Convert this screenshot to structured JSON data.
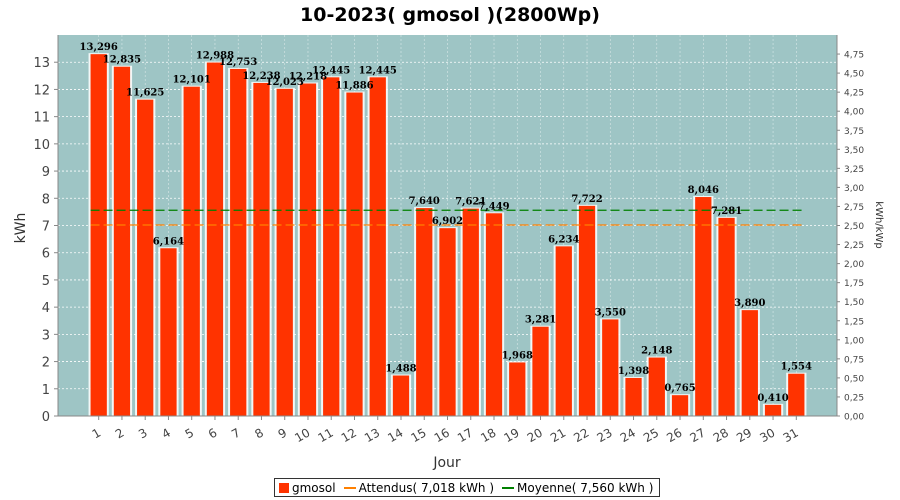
{
  "chart_data": {
    "type": "bar",
    "title": "10-2023( gmosol )(2800Wp)",
    "xlabel": "Jour",
    "ylabel": "kWh",
    "y2label": "kWh/kWp",
    "categories": [
      "1",
      "2",
      "3",
      "4",
      "5",
      "6",
      "7",
      "8",
      "9",
      "10",
      "11",
      "12",
      "13",
      "14",
      "15",
      "16",
      "17",
      "18",
      "19",
      "20",
      "21",
      "22",
      "23",
      "24",
      "25",
      "26",
      "27",
      "28",
      "29",
      "30",
      "31"
    ],
    "series": [
      {
        "name": "gmosol",
        "values": [
          13.296,
          12.835,
          11.625,
          6.164,
          12.101,
          12.988,
          12.753,
          12.238,
          12.023,
          12.218,
          12.445,
          11.886,
          12.445,
          1.488,
          7.64,
          6.902,
          7.621,
          7.449,
          1.968,
          3.281,
          6.234,
          7.722,
          3.55,
          1.398,
          2.148,
          0.765,
          8.046,
          7.281,
          3.89,
          0.41,
          1.554
        ],
        "labels": [
          "13,296",
          "12,835",
          "11,625",
          "6,164",
          "12,101",
          "12,988",
          "12,753",
          "12,238",
          "12,023",
          "12,218",
          "12,445",
          "11,886",
          "12,445",
          "1,488",
          "7,640",
          "6,902",
          "7,621",
          "7,449",
          "1,968",
          "3,281",
          "6,234",
          "7,722",
          "3,550",
          "1,398",
          "2,148",
          "0,765",
          "8,046",
          "7,281",
          "3,890",
          "0,410",
          "1,554"
        ],
        "color": "#ff3300"
      }
    ],
    "reference_lines": [
      {
        "name": "Attendus( 7,018 kWh )",
        "value": 7.018,
        "color": "#ff8000"
      },
      {
        "name": "Moyenne( 7,560 kWh )",
        "value": 7.56,
        "color": "#008000"
      }
    ],
    "ylim": [
      0,
      14
    ],
    "yticks": [
      "0",
      "1",
      "2",
      "3",
      "4",
      "5",
      "6",
      "7",
      "8",
      "9",
      "10",
      "11",
      "12",
      "13"
    ],
    "y2lim": [
      0,
      5
    ],
    "y2ticks": [
      "0,00",
      "0,25",
      "0,50",
      "0,75",
      "1,00",
      "1,25",
      "1,50",
      "1,75",
      "2,00",
      "2,25",
      "2,50",
      "2,75",
      "3,00",
      "3,25",
      "3,50",
      "3,75",
      "4,00",
      "4,25",
      "4,50",
      "4,75"
    ],
    "grid": true,
    "legend_position": "bottom",
    "plot_background": "#9ec5c5"
  }
}
